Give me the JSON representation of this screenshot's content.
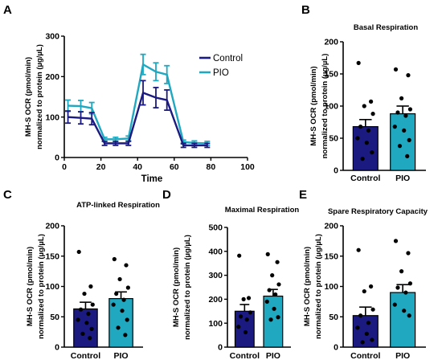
{
  "colors": {
    "control": "#1a1a80",
    "pio": "#1fa8c0"
  },
  "chart_data": [
    {
      "panel": "A",
      "type": "line",
      "title": "",
      "xlabel": "Time",
      "ylabel_line1": "MH-S OCR (pmol/min)",
      "ylabel_line2": "normalized to protein (µg/µL)",
      "xlim": [
        0,
        100
      ],
      "ylim": [
        0,
        300
      ],
      "xticks": [
        0,
        20,
        40,
        60,
        80,
        100
      ],
      "yticks": [
        0,
        100,
        200,
        300
      ],
      "legend_position": "right",
      "x": [
        2,
        9,
        15,
        22,
        28,
        35,
        43,
        50,
        56,
        65,
        71,
        78
      ],
      "series": [
        {
          "name": "Control",
          "color_key": "control",
          "values": [
            100,
            98,
            96,
            35,
            35,
            35,
            160,
            148,
            142,
            30,
            30,
            30
          ],
          "errors": [
            15,
            15,
            15,
            5,
            5,
            5,
            30,
            25,
            25,
            5,
            5,
            5
          ]
        },
        {
          "name": "PIO",
          "color_key": "pio",
          "values": [
            128,
            127,
            122,
            45,
            45,
            47,
            230,
            212,
            205,
            38,
            36,
            35
          ],
          "errors": [
            14,
            14,
            14,
            5,
            5,
            6,
            25,
            22,
            22,
            5,
            5,
            5
          ]
        }
      ]
    },
    {
      "panel": "B",
      "type": "bar",
      "title": "Basal Respiration",
      "ylabel_line1": "MH-S OCR (pmol/min)",
      "ylabel_line2": "normalized to protein (µg/µL)",
      "ylim": [
        0,
        200
      ],
      "yticks": [
        0,
        50,
        100,
        150,
        200
      ],
      "categories": [
        "Control",
        "PIO"
      ],
      "values": [
        68,
        88
      ],
      "errors": [
        11,
        12
      ],
      "points": [
        [
          167,
          107,
          100,
          88,
          68,
          62,
          50,
          43,
          28,
          18
        ],
        [
          157,
          148,
          112,
          95,
          90,
          85,
          68,
          62,
          47,
          38,
          22
        ]
      ]
    },
    {
      "panel": "C",
      "type": "bar",
      "title": "ATP-linked Respiration",
      "ylabel_line1": "MH-S OCR (pmol/min)",
      "ylabel_line2": "normalized to protein (µg/µL)",
      "ylim": [
        0,
        200
      ],
      "yticks": [
        0,
        50,
        100,
        150,
        200
      ],
      "categories": [
        "Control",
        "PIO"
      ],
      "values": [
        63,
        80
      ],
      "errors": [
        11,
        11
      ],
      "points": [
        [
          157,
          100,
          88,
          70,
          62,
          55,
          45,
          40,
          30,
          22,
          15
        ],
        [
          145,
          135,
          112,
          98,
          88,
          78,
          70,
          60,
          45,
          32,
          20
        ]
      ]
    },
    {
      "panel": "D",
      "type": "bar",
      "title": "Maximal Respiration",
      "ylabel_line1": "MH-S OCR (pmol/min)",
      "ylabel_line2": "normalized to protein (µg/µL)",
      "ylim": [
        0,
        500
      ],
      "yticks": [
        0,
        100,
        200,
        300,
        400,
        500
      ],
      "categories": [
        "Control",
        "PIO"
      ],
      "values": [
        150,
        213
      ],
      "errors": [
        28,
        28
      ],
      "points": [
        [
          382,
          205,
          200,
          145,
          128,
          115,
          85,
          62
        ],
        [
          388,
          355,
          300,
          262,
          238,
          220,
          190,
          160,
          125,
          115
        ]
      ]
    },
    {
      "panel": "E",
      "type": "bar",
      "title": "Spare Respiratory Capacity",
      "ylabel_line1": "MH-S OCR (pmol/min)",
      "ylabel_line2": "normalized to protein (µg/µL)",
      "ylim": [
        0,
        200
      ],
      "yticks": [
        0,
        50,
        100,
        150,
        200
      ],
      "categories": [
        "Control",
        "PIO"
      ],
      "values": [
        52,
        90
      ],
      "errors": [
        14,
        13
      ],
      "points": [
        [
          160,
          100,
          92,
          62,
          52,
          40,
          32,
          22,
          12,
          8
        ],
        [
          175,
          155,
          125,
          105,
          98,
          90,
          70,
          60,
          52
        ]
      ]
    }
  ]
}
